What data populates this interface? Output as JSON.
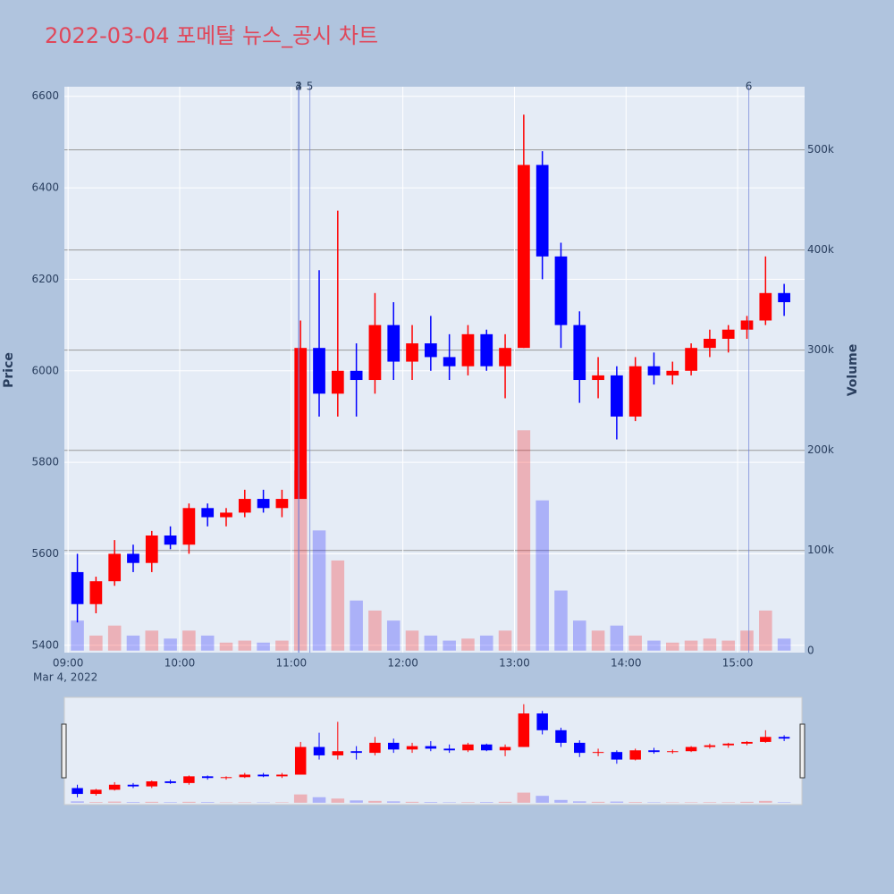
{
  "chart_data": {
    "type": "candlestick",
    "title": "2022-03-04 포메탈 뉴스_공시 차트",
    "title_color": "#e0475a",
    "increasing_color": "#ff0000",
    "decreasing_color": "#0000ff",
    "y_label": "Price",
    "y2_label": "Volume",
    "x_date_label": "Mar 4, 2022",
    "x": [
      "09:00",
      "09:10",
      "09:20",
      "09:30",
      "09:40",
      "09:50",
      "10:00",
      "10:10",
      "10:20",
      "10:30",
      "10:40",
      "10:50",
      "11:00",
      "11:10",
      "11:20",
      "11:30",
      "11:40",
      "11:50",
      "12:00",
      "12:10",
      "12:20",
      "12:30",
      "12:40",
      "12:50",
      "13:00",
      "13:10",
      "13:20",
      "13:30",
      "13:40",
      "13:50",
      "14:00",
      "14:10",
      "14:20",
      "14:30",
      "14:40",
      "14:50",
      "15:00",
      "15:10",
      "15:20"
    ],
    "open": [
      5560,
      5490,
      5540,
      5600,
      5580,
      5640,
      5620,
      5700,
      5680,
      5690,
      5720,
      5700,
      5720,
      6050,
      5950,
      6000,
      5980,
      6100,
      6020,
      6060,
      6030,
      6010,
      6080,
      6010,
      6050,
      6450,
      6250,
      6100,
      5980,
      5990,
      5900,
      6010,
      5990,
      6000,
      6050,
      6070,
      6090,
      6110,
      6170
    ],
    "high": [
      5600,
      5550,
      5630,
      5620,
      5650,
      5660,
      5710,
      5710,
      5700,
      5740,
      5740,
      5740,
      6110,
      6220,
      6350,
      6060,
      6170,
      6150,
      6100,
      6120,
      6080,
      6100,
      6090,
      6080,
      6560,
      6480,
      6280,
      6130,
      6030,
      6010,
      6030,
      6040,
      6020,
      6060,
      6090,
      6100,
      6120,
      6250,
      6190
    ],
    "low": [
      5450,
      5470,
      5530,
      5560,
      5560,
      5610,
      5600,
      5660,
      5660,
      5680,
      5690,
      5680,
      5720,
      5900,
      5900,
      5900,
      5950,
      5980,
      5980,
      6000,
      5980,
      5990,
      6000,
      5940,
      6050,
      6200,
      6050,
      5930,
      5940,
      5850,
      5890,
      5970,
      5970,
      5990,
      6030,
      6040,
      6070,
      6100,
      6120
    ],
    "close": [
      5490,
      5540,
      5600,
      5580,
      5640,
      5620,
      5700,
      5680,
      5690,
      5720,
      5700,
      5720,
      6050,
      5950,
      6000,
      5980,
      6100,
      6020,
      6060,
      6030,
      6010,
      6080,
      6010,
      6050,
      6450,
      6250,
      6100,
      5980,
      5990,
      5900,
      6010,
      5990,
      6000,
      6050,
      6070,
      6090,
      6110,
      6170,
      6150
    ],
    "volume": [
      30000,
      15000,
      25000,
      15000,
      20000,
      12000,
      20000,
      15000,
      8000,
      10000,
      8000,
      10000,
      180000,
      120000,
      90000,
      50000,
      40000,
      30000,
      20000,
      15000,
      10000,
      12000,
      15000,
      20000,
      220000,
      150000,
      60000,
      30000,
      20000,
      25000,
      15000,
      10000,
      8000,
      10000,
      12000,
      10000,
      20000,
      40000,
      12000
    ],
    "xlim": [
      "08:58",
      "15:36"
    ],
    "xticks": [
      "09:00",
      "10:00",
      "11:00",
      "12:00",
      "13:00",
      "14:00",
      "15:00"
    ],
    "ylim": [
      5384,
      6621
    ],
    "yticks": [
      5400,
      5600,
      5800,
      6000,
      6200,
      6400,
      6600
    ],
    "y2lim": [
      -2000,
      563000
    ],
    "y2ticks": [
      0,
      {
        "value": 100000,
        "label": "100k"
      },
      {
        "value": 200000,
        "label": "200k"
      },
      {
        "value": 300000,
        "label": "300k"
      },
      {
        "value": 400000,
        "label": "400k"
      },
      {
        "value": 500000,
        "label": "500k"
      }
    ],
    "annotations": [
      {
        "x": "11:04",
        "text": "2"
      },
      {
        "x": "11:04",
        "text": "3"
      },
      {
        "x": "11:04",
        "text": "4"
      },
      {
        "x": "11:10",
        "text": "5"
      },
      {
        "x": "15:06",
        "text": "6"
      }
    ]
  }
}
